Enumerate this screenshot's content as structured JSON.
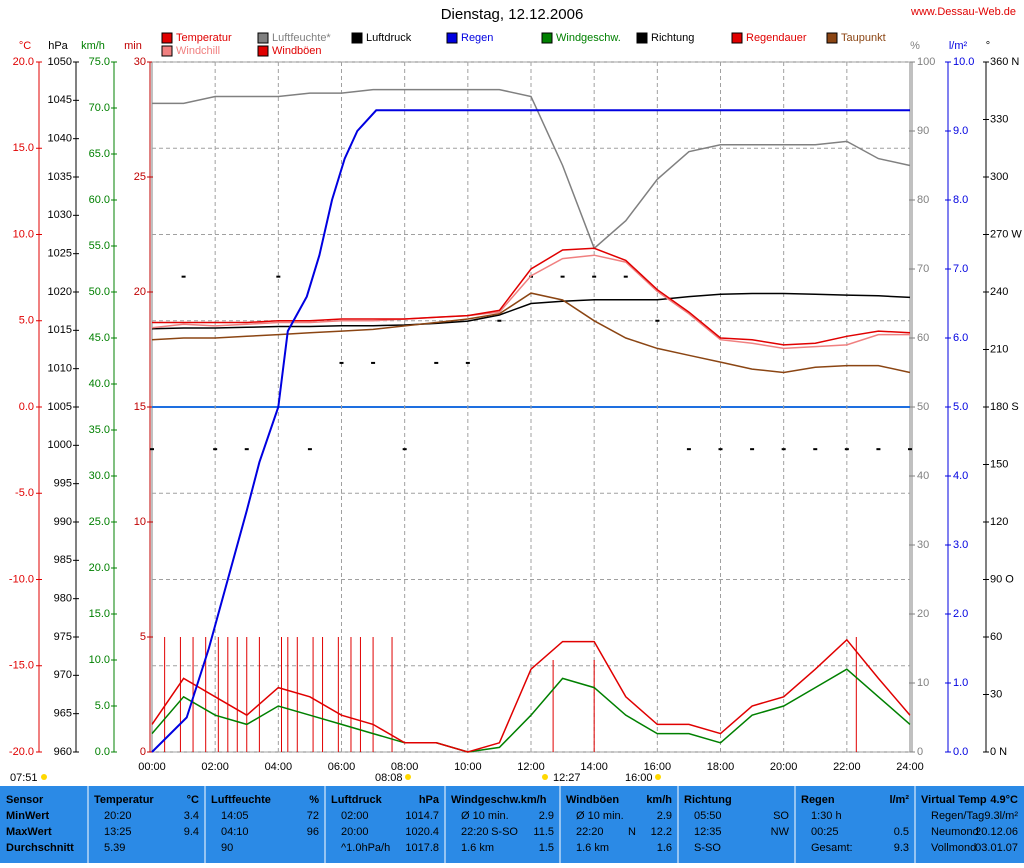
{
  "chart_data": {
    "type": "line",
    "title": "Dienstag, 12.12.2006",
    "source": "www.Dessau-Web.de",
    "xlim": [
      0,
      24
    ],
    "xticks": [
      {
        "value": 0,
        "label": "00:00"
      },
      {
        "value": 2,
        "label": "02:00"
      },
      {
        "value": 4,
        "label": "04:00"
      },
      {
        "value": 6,
        "label": "06:00"
      },
      {
        "value": 8,
        "label": "08:00"
      },
      {
        "value": 10,
        "label": "10:00"
      },
      {
        "value": 12,
        "label": "12:00"
      },
      {
        "value": 14,
        "label": "14:00"
      },
      {
        "value": 16,
        "label": "16:00"
      },
      {
        "value": 18,
        "label": "18:00"
      },
      {
        "value": 20,
        "label": "20:00"
      },
      {
        "value": 22,
        "label": "22:00"
      },
      {
        "value": 24,
        "label": "24:00"
      }
    ],
    "annotations": [
      "07:51",
      "08:08",
      "12:27",
      "16:00"
    ],
    "grid": true,
    "x": [
      0,
      1,
      2,
      3,
      4,
      5,
      6,
      7,
      8,
      9,
      10,
      11,
      12,
      13,
      14,
      15,
      16,
      17,
      18,
      19,
      20,
      21,
      22,
      23,
      24
    ],
    "axes": [
      {
        "id": "temp",
        "label": "°C",
        "color": "#e00000",
        "ylim": [
          -20,
          20
        ],
        "yticks": [
          {
            "value": 20,
            "label": "20.0"
          },
          {
            "value": 15,
            "label": "15.0"
          },
          {
            "value": 10,
            "label": "10.0"
          },
          {
            "value": 5,
            "label": "5.0"
          },
          {
            "value": 0,
            "label": "0.0"
          },
          {
            "value": -5,
            "label": "-5.0"
          },
          {
            "value": -10,
            "label": "-10.0"
          },
          {
            "value": -15,
            "label": "-15.0"
          },
          {
            "value": -20,
            "label": "-20.0"
          }
        ]
      },
      {
        "id": "press",
        "label": "hPa",
        "color": "#000000",
        "ylim": [
          960,
          1050
        ],
        "yticks": [
          1050,
          1045,
          1040,
          1035,
          1030,
          1025,
          1020,
          1015,
          1010,
          1005,
          1000,
          995,
          990,
          985,
          980,
          975,
          970,
          965,
          960
        ]
      },
      {
        "id": "wind",
        "label": "km/h",
        "color": "#008000",
        "ylim": [
          0,
          75
        ],
        "yticks": [
          {
            "value": 75,
            "label": "75.0"
          },
          {
            "value": 70,
            "label": "70.0"
          },
          {
            "value": 65,
            "label": "65.0"
          },
          {
            "value": 60,
            "label": "60.0"
          },
          {
            "value": 55,
            "label": "55.0"
          },
          {
            "value": 50,
            "label": "50.0"
          },
          {
            "value": 45,
            "label": "45.0"
          },
          {
            "value": 40,
            "label": "40.0"
          },
          {
            "value": 35,
            "label": "35.0"
          },
          {
            "value": 30,
            "label": "30.0"
          },
          {
            "value": 25,
            "label": "25.0"
          },
          {
            "value": 20,
            "label": "20.0"
          },
          {
            "value": 15,
            "label": "15.0"
          },
          {
            "value": 10,
            "label": "10.0"
          },
          {
            "value": 5,
            "label": "5.0"
          },
          {
            "value": 0,
            "label": "0.0"
          }
        ]
      },
      {
        "id": "min",
        "label": "min",
        "color": "#c00000",
        "ylim": [
          0,
          30
        ],
        "yticks": [
          30,
          25,
          20,
          15,
          10,
          5,
          0
        ]
      },
      {
        "id": "hum",
        "label": "%",
        "color": "#808080",
        "ylim": [
          0,
          100
        ],
        "yticks": [
          100,
          90,
          80,
          70,
          60,
          50,
          40,
          30,
          20,
          10,
          0
        ]
      },
      {
        "id": "rain",
        "label": "l/m²",
        "color": "#0000e0",
        "ylim": [
          0,
          10
        ],
        "yticks": [
          {
            "value": 10,
            "label": "10.0"
          },
          {
            "value": 9,
            "label": "9.0"
          },
          {
            "value": 8,
            "label": "8.0"
          },
          {
            "value": 7,
            "label": "7.0"
          },
          {
            "value": 6,
            "label": "6.0"
          },
          {
            "value": 5,
            "label": "5.0"
          },
          {
            "value": 4,
            "label": "4.0"
          },
          {
            "value": 3,
            "label": "3.0"
          },
          {
            "value": 2,
            "label": "2.0"
          },
          {
            "value": 1,
            "label": "1.0"
          },
          {
            "value": 0,
            "label": "0.0"
          }
        ]
      },
      {
        "id": "dir",
        "label": "°",
        "color": "#000000",
        "ylim": [
          0,
          360
        ],
        "yticks": [
          {
            "value": 360,
            "label": "360 N"
          },
          330,
          300,
          {
            "value": 270,
            "label": "270 W"
          },
          240,
          210,
          {
            "value": 180,
            "label": "180 S"
          },
          150,
          120,
          {
            "value": 90,
            "label": "90 O"
          },
          60,
          30,
          {
            "value": 0,
            "label": "0 N"
          }
        ]
      }
    ],
    "series": [
      {
        "name": "Temperatur",
        "color": "#e00000",
        "axis": "temp",
        "type": "line",
        "values": [
          4.9,
          4.9,
          4.9,
          4.9,
          5.0,
          5.0,
          5.1,
          5.1,
          5.1,
          5.2,
          5.3,
          5.6,
          8.0,
          9.1,
          9.2,
          8.5,
          6.8,
          5.5,
          4.0,
          3.9,
          3.6,
          3.7,
          4.1,
          4.4,
          4.3
        ]
      },
      {
        "name": "Windchill",
        "color": "#f08080",
        "axis": "temp",
        "type": "line",
        "values": [
          4.6,
          4.8,
          4.7,
          4.8,
          4.9,
          4.9,
          5.0,
          5.0,
          5.1,
          5.2,
          5.3,
          5.5,
          7.6,
          8.6,
          8.8,
          8.4,
          6.7,
          5.4,
          3.9,
          3.7,
          3.4,
          3.5,
          3.6,
          4.2,
          4.2
        ]
      },
      {
        "name": "Luftfeuchte*",
        "color": "#808080",
        "axis": "hum",
        "type": "line",
        "values": [
          94,
          94,
          95,
          95,
          95,
          95.5,
          95.5,
          96,
          96,
          96,
          96,
          96,
          95,
          85,
          73,
          77,
          83,
          87,
          88,
          88,
          88,
          88,
          88.5,
          86,
          85
        ]
      },
      {
        "name": "Windböen",
        "color": "#e00000",
        "axis": "wind",
        "type": "line",
        "values": [
          3,
          8,
          6,
          4,
          7,
          6,
          4,
          3,
          1,
          1,
          0,
          1,
          9,
          12,
          12,
          6,
          3,
          3,
          2,
          5,
          6,
          9,
          12.2,
          8,
          4
        ]
      },
      {
        "name": "Luftdruck",
        "color": "#000000",
        "axis": "press",
        "type": "line",
        "values": [
          1015.2,
          1015.3,
          1015.3,
          1015.4,
          1015.5,
          1015.5,
          1015.6,
          1015.6,
          1015.7,
          1015.9,
          1016.2,
          1017.0,
          1018.5,
          1018.8,
          1019.0,
          1019.0,
          1019.0,
          1019.4,
          1019.7,
          1019.8,
          1019.8,
          1019.7,
          1019.6,
          1019.5,
          1019.3
        ]
      },
      {
        "name": "Regen",
        "color": "#0000e0",
        "axis": "rain",
        "type": "line",
        "x": [
          0,
          1.1,
          1.8,
          2.4,
          3.0,
          3.4,
          4.0,
          4.3,
          4.9,
          5.3,
          5.7,
          6.1,
          6.5,
          7.1,
          7.6,
          24
        ],
        "values": [
          0,
          0.5,
          1.5,
          2.5,
          3.5,
          4.2,
          5.0,
          6.1,
          6.6,
          7.2,
          8.0,
          8.6,
          9.0,
          9.3,
          9.3,
          9.3
        ]
      },
      {
        "name": "Windgeschw.",
        "color": "#008000",
        "axis": "wind",
        "type": "line",
        "values": [
          2,
          6,
          4,
          3,
          5,
          4,
          3,
          2,
          1,
          1,
          0,
          0.5,
          4,
          8,
          7,
          4,
          2,
          2,
          1,
          4,
          5,
          7,
          9,
          6,
          3
        ]
      },
      {
        "name": "Richtung",
        "color": "#000000",
        "axis": "dir",
        "type": "scatter",
        "values": [
          158,
          248,
          158,
          158,
          248,
          158,
          203,
          203,
          158,
          203,
          203,
          225,
          248,
          248,
          248,
          248,
          225,
          158,
          158,
          158,
          158,
          158,
          158,
          158,
          158
        ]
      },
      {
        "name": "Regendauer",
        "color": "#e00000",
        "axis": "min",
        "type": "bar",
        "x": [
          0.4,
          0.9,
          1.3,
          1.7,
          2.1,
          2.4,
          2.7,
          3.0,
          3.4,
          4.1,
          4.3,
          4.6,
          5.1,
          5.4,
          5.9,
          6.3,
          6.6,
          7.0,
          7.6,
          12.7,
          14.0,
          22.3
        ],
        "values": [
          5,
          5,
          5,
          5,
          5,
          5,
          5,
          5,
          5,
          5,
          5,
          5,
          5,
          5,
          5,
          5,
          5,
          5,
          5,
          4,
          4,
          5
        ]
      },
      {
        "name": "Taupunkt",
        "color": "#8b4513",
        "axis": "temp",
        "type": "line",
        "values": [
          3.9,
          4.0,
          4.0,
          4.1,
          4.2,
          4.3,
          4.4,
          4.5,
          4.7,
          4.9,
          5.1,
          5.4,
          6.6,
          6.2,
          5.0,
          4.0,
          3.4,
          3.0,
          2.6,
          2.2,
          2.0,
          2.3,
          2.4,
          2.4,
          2.0
        ]
      }
    ]
  },
  "table": {
    "header": [
      [
        "Sensor"
      ],
      [
        "Temperatur",
        "°C"
      ],
      [
        "Luftfeuchte",
        "%"
      ],
      [
        "Luftdruck",
        "hPa"
      ],
      [
        "Windgeschw.km/h"
      ],
      [
        "Windböen",
        "km/h"
      ],
      [
        "Richtung"
      ],
      [
        "Regen",
        "l/m²"
      ],
      [
        "Virtual Temp",
        "4.9°C"
      ]
    ],
    "rows": [
      [
        [
          "MinWert"
        ],
        [
          "20:20",
          "3.4"
        ],
        [
          "14:05",
          "72"
        ],
        [
          "02:00",
          "1014.7"
        ],
        [
          "Ø 10 min.",
          "2.9"
        ],
        [
          "Ø 10 min.",
          "2.9"
        ],
        [
          "05:50",
          "SO"
        ],
        [
          "1:30 h"
        ],
        [
          "Regen/Tag",
          "9.3l/m²"
        ]
      ],
      [
        [
          "MaxWert"
        ],
        [
          "13:25",
          "9.4"
        ],
        [
          "04:10",
          "96"
        ],
        [
          "20:00",
          "1020.4"
        ],
        [
          "22:20",
          "S-SO",
          "11.5"
        ],
        [
          "22:20",
          "N",
          "12.2"
        ],
        [
          "12:35",
          "NW"
        ],
        [
          "00:25",
          "0.5"
        ],
        [
          "Neumond",
          "20.12.06"
        ]
      ],
      [
        [
          "Durchschnitt"
        ],
        [
          "5.39"
        ],
        [
          "90"
        ],
        [
          "^1.0hPa/h",
          "1017.8"
        ],
        [
          "1.6 km",
          "1.5"
        ],
        [
          "1.6 km",
          "1.6"
        ],
        [
          "S-SO"
        ],
        [
          "Gesamt:",
          "9.3"
        ],
        [
          "Vollmond",
          "03.01.07"
        ]
      ]
    ]
  }
}
